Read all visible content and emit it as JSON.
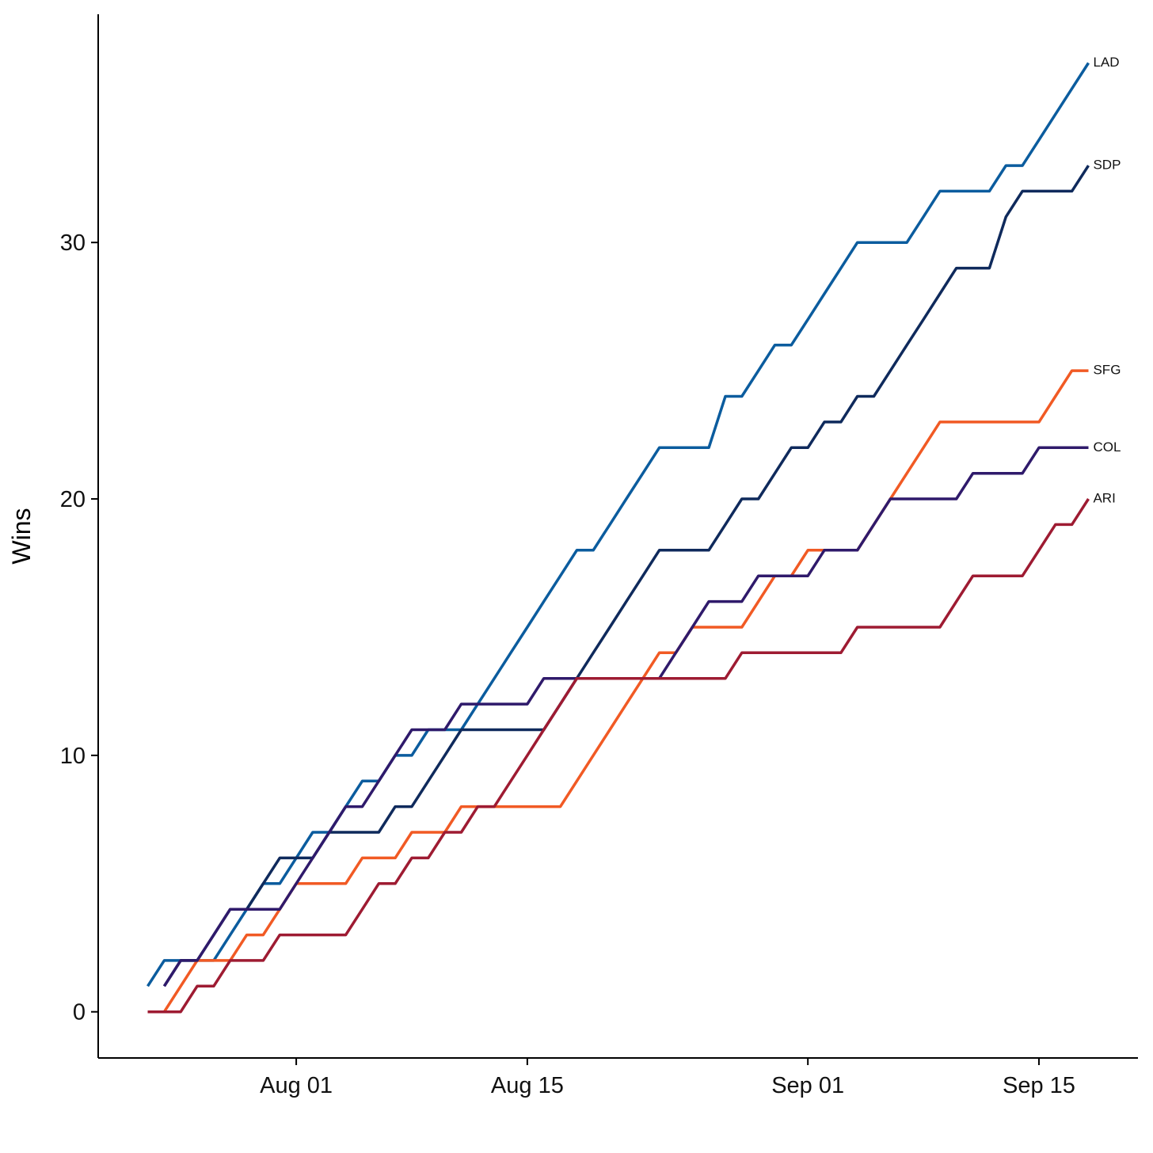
{
  "chart_data": {
    "type": "line",
    "y_label": "Wins",
    "x": [
      "Jul 23",
      "Jul 24",
      "Jul 25",
      "Jul 26",
      "Jul 27",
      "Jul 28",
      "Jul 29",
      "Jul 30",
      "Jul 31",
      "Aug 01",
      "Aug 02",
      "Aug 03",
      "Aug 04",
      "Aug 05",
      "Aug 06",
      "Aug 07",
      "Aug 08",
      "Aug 09",
      "Aug 10",
      "Aug 11",
      "Aug 12",
      "Aug 13",
      "Aug 14",
      "Aug 15",
      "Aug 16",
      "Aug 17",
      "Aug 18",
      "Aug 19",
      "Aug 20",
      "Aug 21",
      "Aug 22",
      "Aug 23",
      "Aug 24",
      "Aug 25",
      "Aug 26",
      "Aug 27",
      "Aug 28",
      "Aug 29",
      "Aug 30",
      "Aug 31",
      "Sep 01",
      "Sep 02",
      "Sep 03",
      "Sep 04",
      "Sep 05",
      "Sep 06",
      "Sep 07",
      "Sep 08",
      "Sep 09",
      "Sep 10",
      "Sep 11",
      "Sep 12",
      "Sep 13",
      "Sep 14",
      "Sep 15",
      "Sep 16",
      "Sep 17",
      "Sep 18"
    ],
    "xlim": [
      "Jul 20",
      "Sep 21"
    ],
    "xticks": [
      "Aug 01",
      "Aug 15",
      "Sep 01",
      "Sep 15"
    ],
    "ylim": [
      -1.8,
      38.9
    ],
    "yticks": [
      0,
      10,
      20,
      30
    ],
    "grid": false,
    "series": [
      {
        "name": "LAD",
        "color": "#0b5c9e",
        "values": [
          1,
          2,
          2,
          2,
          2,
          3,
          4,
          5,
          5,
          6,
          7,
          7,
          8,
          9,
          9,
          10,
          10,
          11,
          11,
          11,
          12,
          13,
          14,
          15,
          16,
          17,
          18,
          18,
          19,
          20,
          21,
          22,
          22,
          22,
          22,
          24,
          24,
          25,
          26,
          26,
          27,
          28,
          29,
          30,
          30,
          30,
          30,
          31,
          32,
          32,
          32,
          32,
          33,
          33,
          34,
          35,
          36,
          37
        ]
      },
      {
        "name": "SDP",
        "color": "#0f2a5c",
        "values": [
          null,
          1,
          2,
          2,
          3,
          4,
          4,
          5,
          6,
          6,
          6,
          7,
          7,
          7,
          7,
          8,
          8,
          9,
          10,
          11,
          11,
          11,
          11,
          11,
          11,
          12,
          13,
          14,
          15,
          16,
          17,
          18,
          18,
          18,
          18,
          19,
          20,
          20,
          21,
          22,
          22,
          23,
          23,
          24,
          24,
          25,
          26,
          27,
          28,
          29,
          29,
          29,
          31,
          32,
          32,
          32,
          32,
          33
        ]
      },
      {
        "name": "SFG",
        "color": "#f15a24",
        "values": [
          0,
          0,
          1,
          2,
          2,
          2,
          3,
          3,
          4,
          5,
          5,
          5,
          5,
          6,
          6,
          6,
          7,
          7,
          7,
          8,
          8,
          8,
          8,
          8,
          8,
          8,
          9,
          10,
          11,
          12,
          13,
          14,
          14,
          15,
          15,
          15,
          15,
          16,
          17,
          17,
          18,
          18,
          18,
          18,
          19,
          20,
          21,
          22,
          23,
          23,
          23,
          23,
          23,
          23,
          23,
          24,
          25,
          25
        ]
      },
      {
        "name": "COL",
        "color": "#2f1a6b",
        "values": [
          null,
          1,
          2,
          2,
          3,
          4,
          4,
          4,
          4,
          5,
          6,
          7,
          8,
          8,
          9,
          10,
          11,
          11,
          11,
          12,
          12,
          12,
          12,
          12,
          13,
          13,
          13,
          13,
          13,
          13,
          13,
          13,
          14,
          15,
          16,
          16,
          16,
          17,
          17,
          17,
          17,
          18,
          18,
          18,
          19,
          20,
          20,
          20,
          20,
          20,
          21,
          21,
          21,
          21,
          22,
          22,
          22,
          22
        ]
      },
      {
        "name": "ARI",
        "color": "#9e1b32",
        "values": [
          0,
          0,
          0,
          1,
          1,
          2,
          2,
          2,
          3,
          3,
          3,
          3,
          3,
          4,
          5,
          5,
          6,
          6,
          7,
          7,
          8,
          8,
          9,
          10,
          11,
          12,
          13,
          13,
          13,
          13,
          13,
          13,
          13,
          13,
          13,
          13,
          14,
          14,
          14,
          14,
          14,
          14,
          14,
          15,
          15,
          15,
          15,
          15,
          15,
          16,
          17,
          17,
          17,
          17,
          18,
          19,
          19,
          20
        ]
      }
    ]
  }
}
